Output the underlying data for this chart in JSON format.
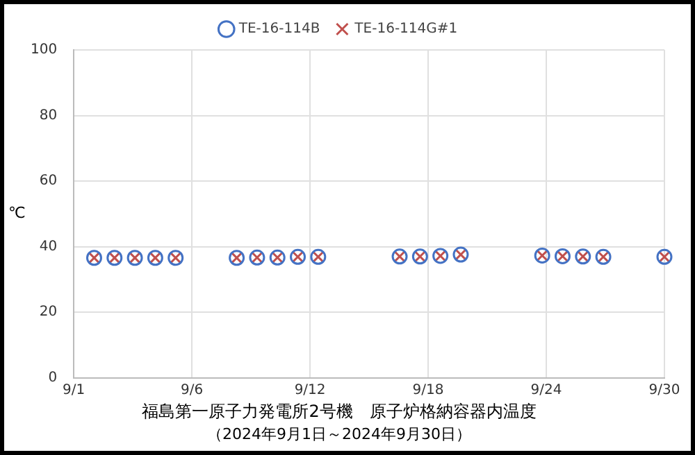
{
  "chart_data": {
    "type": "scatter",
    "title": "福島第一原子力発電所2号機　原子炉格納容器内温度",
    "subtitle": "（2024年9月1日～2024年9月30日）",
    "ylabel": "℃",
    "x": [
      "2024-09-02",
      "2024-09-03",
      "2024-09-04",
      "2024-09-05",
      "2024-09-06",
      "2024-09-09",
      "2024-09-10",
      "2024-09-11",
      "2024-09-12",
      "2024-09-13",
      "2024-09-17",
      "2024-09-18",
      "2024-09-19",
      "2024-09-20",
      "2024-09-24",
      "2024-09-25",
      "2024-09-26",
      "2024-09-27",
      "2024-09-30"
    ],
    "series": [
      {
        "name": "TE-16-114B",
        "color": "#4472c4",
        "marker": "circle",
        "values": [
          36.6,
          36.6,
          36.6,
          36.6,
          36.6,
          36.6,
          36.7,
          36.7,
          36.9,
          36.9,
          37.0,
          37.0,
          37.2,
          37.6,
          37.3,
          37.1,
          37.0,
          36.9,
          36.9
        ]
      },
      {
        "name": "TE-16-114G#1",
        "color": "#c0504d",
        "marker": "cross",
        "values": [
          36.6,
          36.6,
          36.6,
          36.6,
          36.6,
          36.6,
          36.7,
          36.7,
          36.9,
          36.9,
          37.0,
          37.0,
          37.2,
          37.6,
          37.3,
          37.1,
          37.0,
          36.9,
          36.9
        ]
      }
    ],
    "xlim": [
      "2024-09-01",
      "2024-09-30"
    ],
    "xticks": [
      {
        "value": "2024-09-01",
        "label": "9/1"
      },
      {
        "value": "2024-09-06T19:12",
        "label": "9/6"
      },
      {
        "value": "2024-09-12T14:24",
        "label": "9/12"
      },
      {
        "value": "2024-09-18T09:36",
        "label": "9/18"
      },
      {
        "value": "2024-09-24T04:48",
        "label": "9/24"
      },
      {
        "value": "2024-09-30",
        "label": "9/30"
      }
    ],
    "ylim": [
      0,
      100
    ],
    "yticks": [
      0,
      20,
      40,
      60,
      80,
      100
    ],
    "grid": true,
    "legend": "top"
  }
}
